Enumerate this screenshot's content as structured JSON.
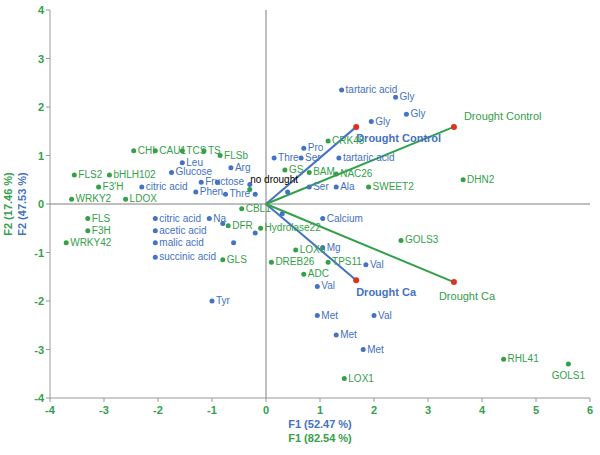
{
  "chart_data": {
    "type": "scatter",
    "xlim": [
      -4,
      6
    ],
    "ylim": [
      -4,
      4
    ],
    "xticks": [
      -4,
      -3,
      -2,
      -1,
      0,
      1,
      2,
      3,
      4,
      5,
      6
    ],
    "yticks": [
      -4,
      -3,
      -2,
      -1,
      0,
      1,
      2,
      3,
      4
    ],
    "grid": false,
    "annotations": [
      {
        "text": "no drought",
        "x": 0.15,
        "y": 0.5
      }
    ],
    "series": [
      {
        "color": "#4472c4",
        "marker": "circle",
        "x_label": "F1 (52.47 %)",
        "y_label": "F2 (47.53 %)",
        "labels": [
          "tartaric acid",
          "Gly",
          "Gly",
          "Gly",
          "Pro",
          "Thre",
          "Ser",
          "tartaric acid",
          "Ser",
          "Ala",
          "Calcium",
          "Mg",
          "Val",
          "Val",
          "Val",
          "Met",
          "Met",
          "Met",
          "Leu",
          "Glucose",
          "Fructose",
          "Arg",
          "Phen",
          "Thre",
          "citric acid",
          "Na",
          "citric acid",
          "acetic acid",
          "malic acid",
          "succinic acid",
          "Tyr",
          null,
          null,
          null,
          null,
          null,
          null,
          null,
          null
        ],
        "x": [
          1.4,
          2.4,
          2.6,
          1.95,
          0.7,
          0.15,
          0.65,
          1.35,
          0.8,
          1.3,
          1.05,
          1.05,
          1.85,
          0.95,
          2.0,
          0.95,
          1.3,
          1.8,
          -1.55,
          -1.75,
          -1.2,
          -0.65,
          -1.3,
          -0.75,
          -2.3,
          -1.05,
          -2.05,
          -2.05,
          -2.05,
          -2.05,
          -1.0,
          -0.9,
          -0.3,
          -0.2,
          0.4,
          -0.8,
          -0.6,
          0.3,
          -0.2
        ],
        "y": [
          2.35,
          2.2,
          1.85,
          1.7,
          1.15,
          0.95,
          0.95,
          0.95,
          0.35,
          0.35,
          -0.3,
          -0.9,
          -1.25,
          -1.7,
          -2.3,
          -2.3,
          -2.7,
          -3.0,
          0.85,
          0.65,
          0.45,
          0.75,
          0.25,
          0.2,
          0.35,
          -0.3,
          -0.3,
          -0.55,
          -0.8,
          -1.1,
          -2.0,
          0.45,
          0.4,
          0.2,
          0.25,
          -0.4,
          -0.8,
          -0.2,
          -0.6
        ],
        "vectors": [
          {
            "label": "Drought Control",
            "x": 1.67,
            "y": 1.59
          },
          {
            "label": "Drought Ca",
            "x": 1.67,
            "y": -1.57
          }
        ]
      },
      {
        "color": "#33a04a",
        "marker": "circle",
        "x_label": "F1 (82.54 %)",
        "y_label": "F2 (17.46 %)",
        "labels": [
          "CHI",
          "CAU1",
          "TCS",
          "TS",
          "FLSb",
          "FLS2",
          "bHLH102",
          "F3'H",
          "WRKY2",
          "LDOX",
          "FLS",
          "F3H",
          "WRKY42",
          "CBL1",
          "DFR",
          "Hydrolase22",
          "GLS",
          "LOX6",
          "DREB26",
          "ADC",
          "TPS11",
          "GOLS3",
          "GOLS1",
          "RHL41",
          "LOX1",
          "DHN2",
          "SWEET2",
          "NAC26",
          "CRK45",
          "BAM",
          "GS",
          null
        ],
        "x": [
          -2.45,
          -2.05,
          -1.55,
          -1.15,
          -0.85,
          -3.55,
          -2.9,
          -3.1,
          -3.6,
          -2.6,
          -3.3,
          -3.3,
          -3.7,
          -0.45,
          -0.7,
          -0.1,
          -0.8,
          0.55,
          0.1,
          0.7,
          1.15,
          2.5,
          5.6,
          4.4,
          1.45,
          3.65,
          1.9,
          1.3,
          1.15,
          0.8,
          0.35,
          -0.3
        ],
        "y": [
          1.1,
          1.1,
          1.1,
          1.1,
          1.0,
          0.6,
          0.6,
          0.35,
          0.1,
          0.1,
          -0.3,
          -0.55,
          -0.8,
          -0.1,
          -0.45,
          -0.5,
          -1.15,
          -0.95,
          -1.2,
          -1.45,
          -1.2,
          -0.75,
          -3.3,
          -3.2,
          -3.6,
          0.5,
          0.35,
          0.62,
          1.3,
          0.65,
          0.7,
          0.3
        ],
        "vectors": [
          {
            "label": "Drought Control",
            "x": 3.48,
            "y": 1.59
          },
          {
            "label": "Drought Ca",
            "x": 3.48,
            "y": -1.61
          }
        ]
      }
    ]
  }
}
